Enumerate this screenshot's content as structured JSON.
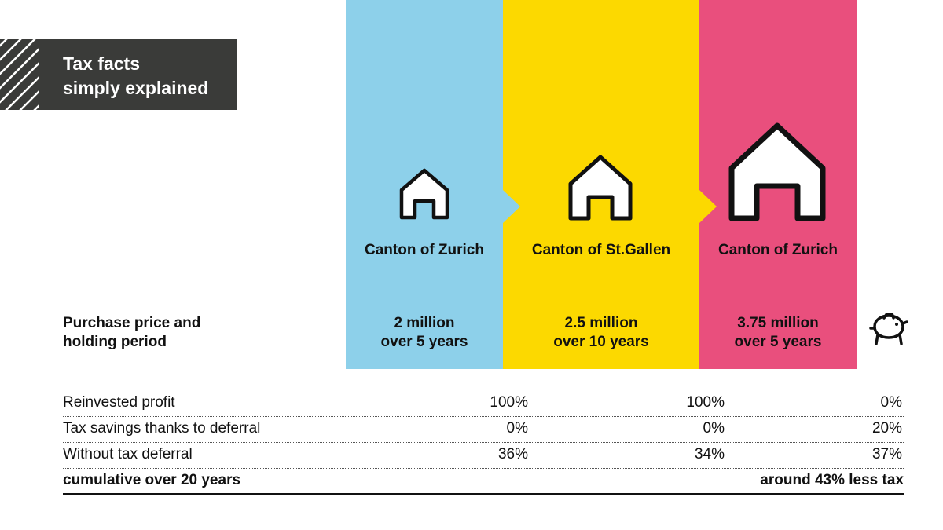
{
  "badge": {
    "line1": "Tax facts",
    "line2": "simply explained"
  },
  "columns": [
    {
      "canton": "Canton of Zurich",
      "price": "2 million",
      "period": "over 5 years",
      "color": "#8dd0ea"
    },
    {
      "canton": "Canton of St.Gallen",
      "price": "2.5 million",
      "period": "over 10 years",
      "color": "#fcd900"
    },
    {
      "canton": "Canton of Zurich",
      "price": "3.75 million",
      "period": "over 5 years",
      "color": "#e94f7d"
    }
  ],
  "row_header": {
    "line1": "Purchase price and",
    "line2": "holding period"
  },
  "icons": {
    "house": "house-icon",
    "savings": "piggy-bank-icon"
  },
  "table": {
    "rows": [
      {
        "label": "Reinvested profit",
        "values": [
          "100%",
          "100%",
          "0%"
        ]
      },
      {
        "label": "Tax savings thanks to deferral",
        "values": [
          "0%",
          "0%",
          "20%"
        ]
      },
      {
        "label": "Without tax deferral",
        "values": [
          "36%",
          "34%",
          "37%"
        ]
      }
    ],
    "total": {
      "label": "cumulative over 20 years",
      "summary": "around 43% less tax"
    }
  }
}
